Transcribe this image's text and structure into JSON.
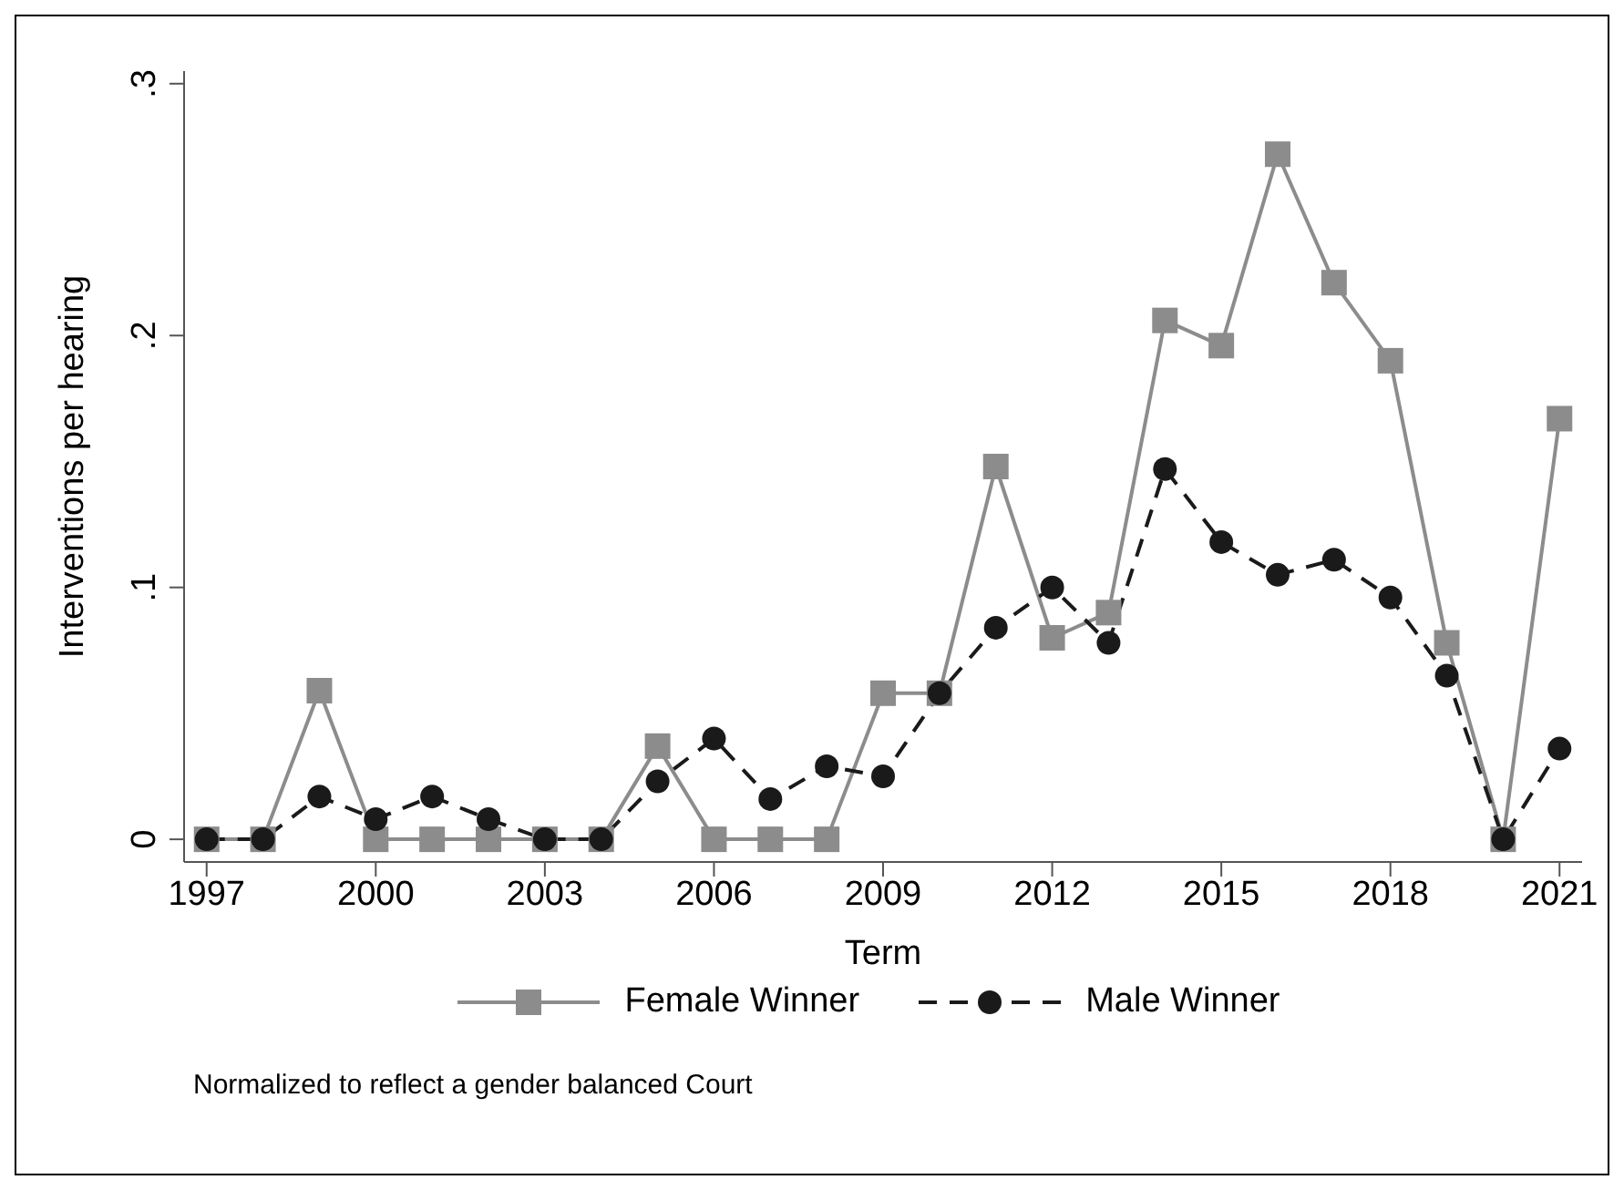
{
  "chart_data": {
    "type": "line",
    "xlabel": "Term",
    "ylabel": "Interventions per hearing",
    "x": [
      1997,
      1998,
      1999,
      2000,
      2001,
      2002,
      2003,
      2004,
      2005,
      2006,
      2007,
      2008,
      2009,
      2010,
      2011,
      2012,
      2013,
      2014,
      2015,
      2016,
      2017,
      2018,
      2019,
      2020,
      2021
    ],
    "series": [
      {
        "name": "Female Winner",
        "color": "#8c8c8c",
        "marker": "square",
        "line_style": "solid",
        "values": [
          0,
          0,
          0.059,
          0,
          0,
          0,
          0,
          0,
          0.037,
          0,
          0,
          0,
          0.058,
          0.058,
          0.148,
          0.08,
          0.09,
          0.206,
          0.196,
          0.272,
          0.221,
          0.19,
          0.078,
          0,
          0.167
        ]
      },
      {
        "name": "Male Winner",
        "color": "#1a1a1a",
        "marker": "circle",
        "line_style": "dashed",
        "values": [
          0,
          0,
          0.017,
          0.008,
          0.017,
          0.008,
          0,
          0,
          0.023,
          0.04,
          0.016,
          0.029,
          0.025,
          0.058,
          0.084,
          0.1,
          0.078,
          0.147,
          0.118,
          0.105,
          0.111,
          0.096,
          0.065,
          0,
          0.036
        ]
      }
    ],
    "xlim": [
      1996.6,
      2021.4
    ],
    "xticks": [
      1997,
      2000,
      2003,
      2006,
      2009,
      2012,
      2015,
      2018,
      2021
    ],
    "ylim": [
      -0.009,
      0.305
    ],
    "yticks": [
      0,
      {
        "value": 0.1,
        "label": ".1"
      },
      {
        "value": 0.2,
        "label": ".2"
      },
      {
        "value": 0.3,
        "label": ".3"
      }
    ],
    "grid": false,
    "legend": "bottom",
    "annotations": [
      "Normalized to reflect a gender balanced Court"
    ]
  }
}
